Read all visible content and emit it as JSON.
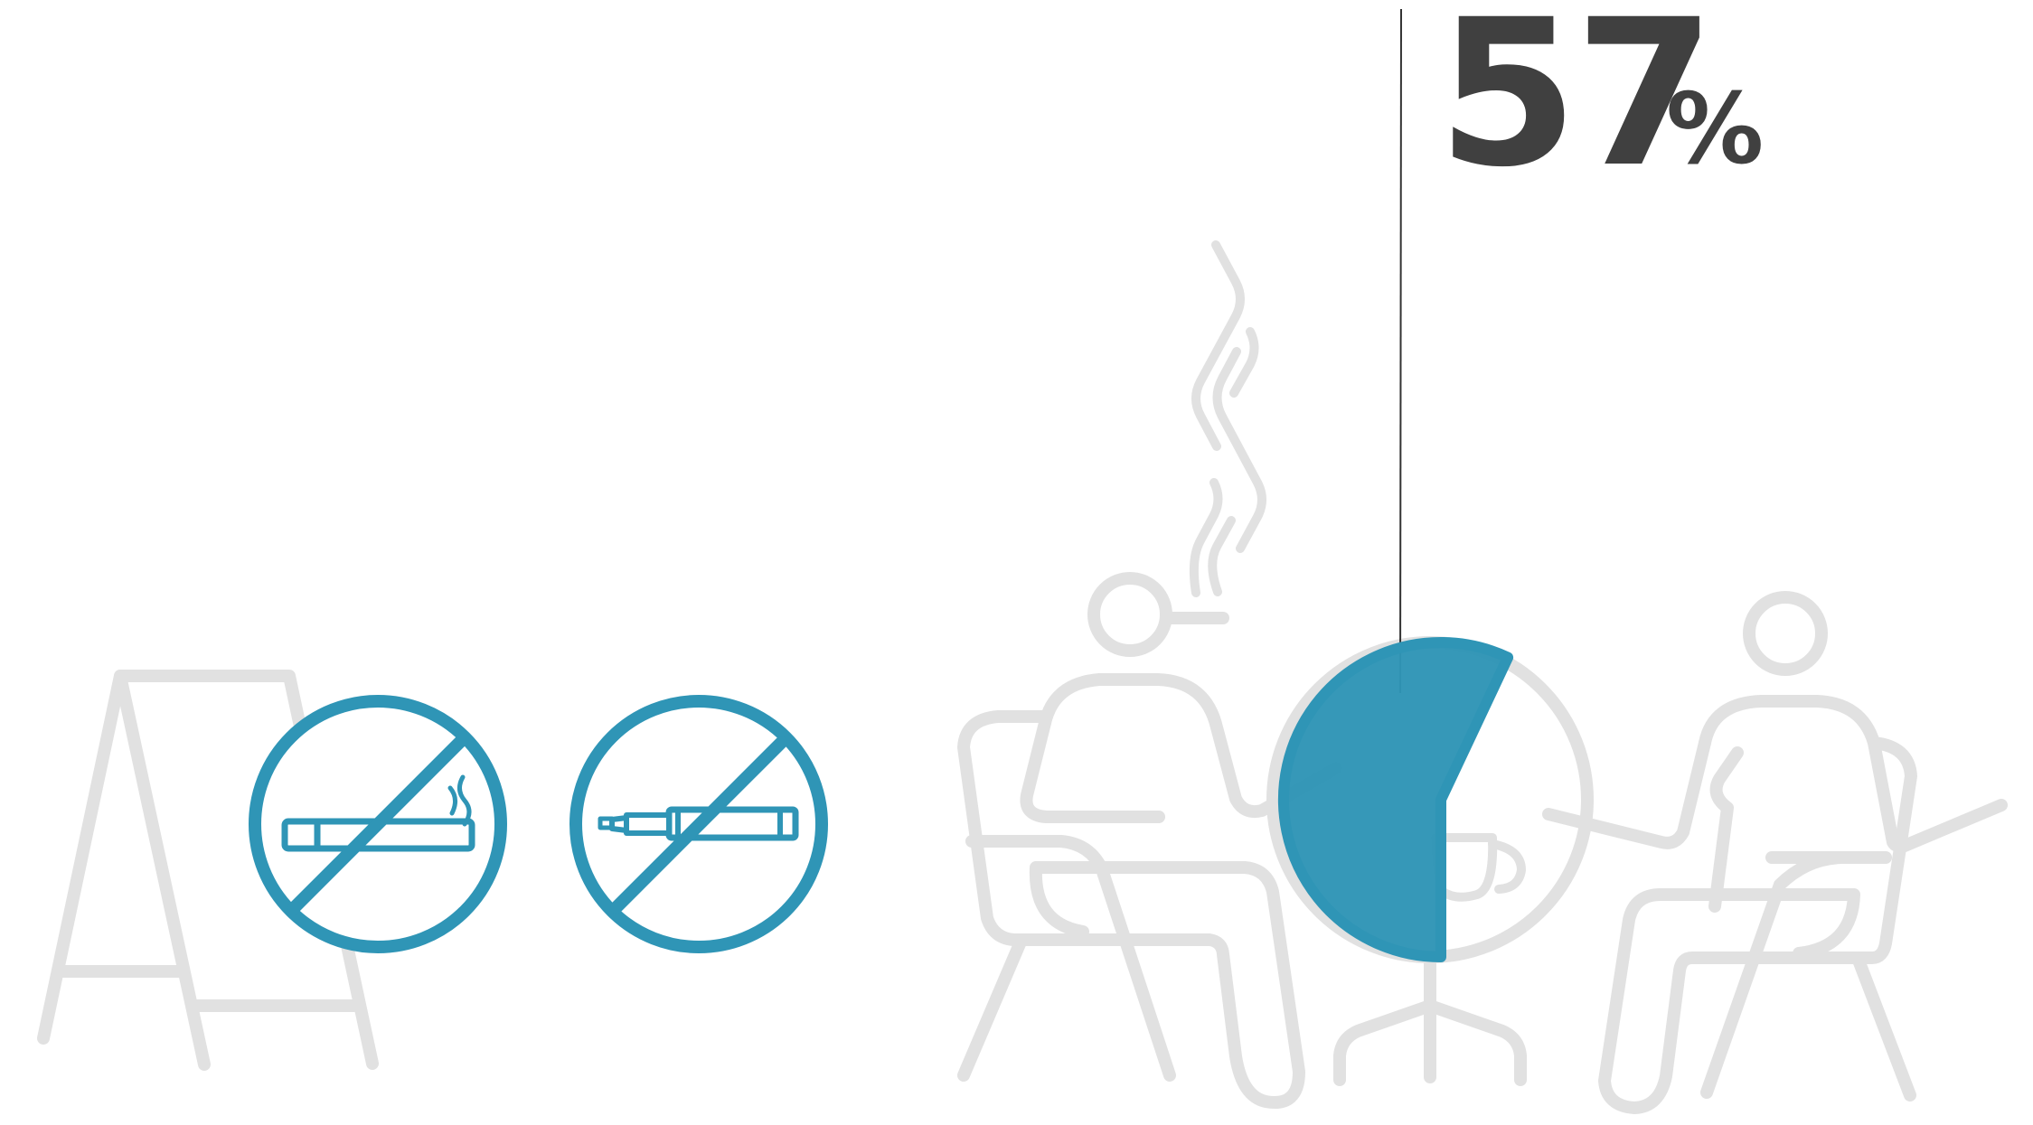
{
  "stat": {
    "value": "57",
    "unit": "%",
    "fraction": 0.57
  },
  "colors": {
    "accent": "#2f95b6",
    "outline": "#e1e1e1",
    "text": "#404040",
    "leader_line": "#333333"
  },
  "icons": [
    "easel-board-icon",
    "no-smoking-icon",
    "no-vaping-icon",
    "smoking-person-icon",
    "cafe-table-icon",
    "coffee-cup-icon",
    "seated-person-icon",
    "pie-indicator"
  ]
}
